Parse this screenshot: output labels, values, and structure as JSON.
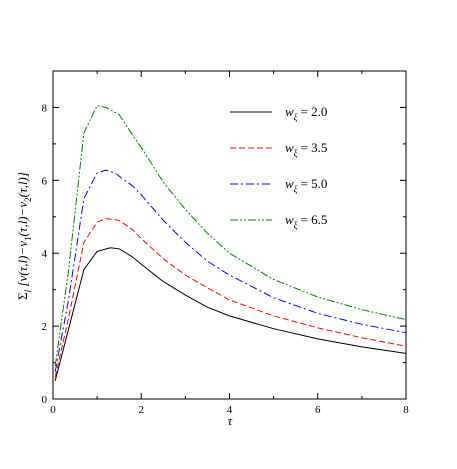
{
  "chart_data": {
    "type": "line",
    "xlabel": "τ",
    "ylabel": "Σ_l [v(τ,l) − v_1(τ,l) − v_2(τ,l)]",
    "xlim": [
      0,
      8
    ],
    "ylim": [
      0,
      9
    ],
    "x_ticks": [
      0,
      2,
      4,
      6,
      8
    ],
    "y_ticks": [
      0,
      2,
      4,
      6,
      8
    ],
    "grid": false,
    "legend_position": "top-right",
    "series": [
      {
        "name": "w_ξ = 2.0",
        "legend_var": "w",
        "legend_sub": "ξ",
        "legend_value": "= 2.0",
        "color": "#000000",
        "dash": "none",
        "x": [
          0.05,
          0.35,
          0.7,
          1.0,
          1.3,
          1.5,
          1.8,
          2.0,
          2.5,
          3.0,
          3.5,
          4.0,
          5.0,
          6.0,
          7.0,
          8.0
        ],
        "y": [
          0.5,
          1.9,
          3.55,
          4.05,
          4.15,
          4.12,
          3.9,
          3.7,
          3.22,
          2.85,
          2.52,
          2.28,
          1.93,
          1.65,
          1.43,
          1.25
        ]
      },
      {
        "name": "w_ξ = 3.5",
        "legend_var": "w",
        "legend_sub": "ξ",
        "legend_value": "= 3.5",
        "color": "#ff0000",
        "dash": "6,3",
        "x": [
          0.05,
          0.35,
          0.7,
          1.0,
          1.2,
          1.5,
          1.8,
          2.0,
          2.5,
          3.0,
          3.5,
          4.0,
          5.0,
          6.0,
          7.0,
          8.0
        ],
        "y": [
          0.6,
          2.2,
          4.3,
          4.85,
          4.95,
          4.9,
          4.65,
          4.4,
          3.85,
          3.4,
          3.05,
          2.72,
          2.28,
          1.95,
          1.68,
          1.45
        ]
      },
      {
        "name": "w_ξ = 5.0",
        "legend_var": "w",
        "legend_sub": "ξ",
        "legend_value": "= 5.0",
        "color": "#0000ff",
        "dash": "8,3,2,3",
        "x": [
          0.05,
          0.35,
          0.7,
          1.0,
          1.2,
          1.4,
          1.8,
          2.0,
          2.5,
          3.0,
          3.5,
          4.0,
          5.0,
          6.0,
          7.0,
          8.0
        ],
        "y": [
          0.75,
          2.7,
          5.5,
          6.2,
          6.28,
          6.2,
          5.85,
          5.6,
          4.9,
          4.3,
          3.78,
          3.4,
          2.78,
          2.35,
          2.05,
          1.82
        ]
      },
      {
        "name": "w_ξ = 6.5",
        "legend_var": "w",
        "legend_sub": "ξ",
        "legend_value": "= 6.5",
        "color": "#008000",
        "dash": "8,2,2,2,2,2",
        "x": [
          0.05,
          0.35,
          0.7,
          1.0,
          1.2,
          1.5,
          1.8,
          2.0,
          2.5,
          3.0,
          3.5,
          4.0,
          5.0,
          6.0,
          7.0,
          8.0
        ],
        "y": [
          0.9,
          3.5,
          7.3,
          8.05,
          8.0,
          7.8,
          7.25,
          6.9,
          5.95,
          5.2,
          4.55,
          4.0,
          3.28,
          2.8,
          2.45,
          2.18
        ]
      }
    ]
  }
}
